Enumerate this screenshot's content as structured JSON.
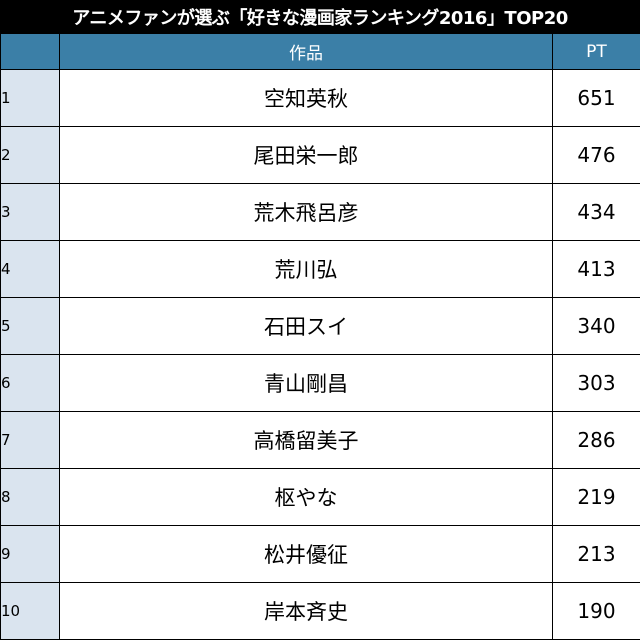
{
  "title": "アニメファンが選ぶ「好きな漫画家ランキング2016」TOP20",
  "table": {
    "headers": {
      "rank": "",
      "work": "作品",
      "pt": "PT"
    },
    "rows": [
      {
        "rank": "1",
        "name": "空知英秋",
        "pt": "651"
      },
      {
        "rank": "2",
        "name": "尾田栄一郎",
        "pt": "476"
      },
      {
        "rank": "3",
        "name": "荒木飛呂彦",
        "pt": "434"
      },
      {
        "rank": "4",
        "name": "荒川弘",
        "pt": "413"
      },
      {
        "rank": "5",
        "name": "石田スイ",
        "pt": "340"
      },
      {
        "rank": "6",
        "name": "青山剛昌",
        "pt": "303"
      },
      {
        "rank": "7",
        "name": "高橋留美子",
        "pt": "286"
      },
      {
        "rank": "8",
        "name": "枢やな",
        "pt": "219"
      },
      {
        "rank": "9",
        "name": "松井優征",
        "pt": "213"
      },
      {
        "rank": "10",
        "name": "岸本斉史",
        "pt": "190"
      }
    ]
  },
  "colors": {
    "title_background": "#000000",
    "header_background": "#3b7fa7",
    "rank_background": "#dae4ef",
    "border": "#000000"
  }
}
